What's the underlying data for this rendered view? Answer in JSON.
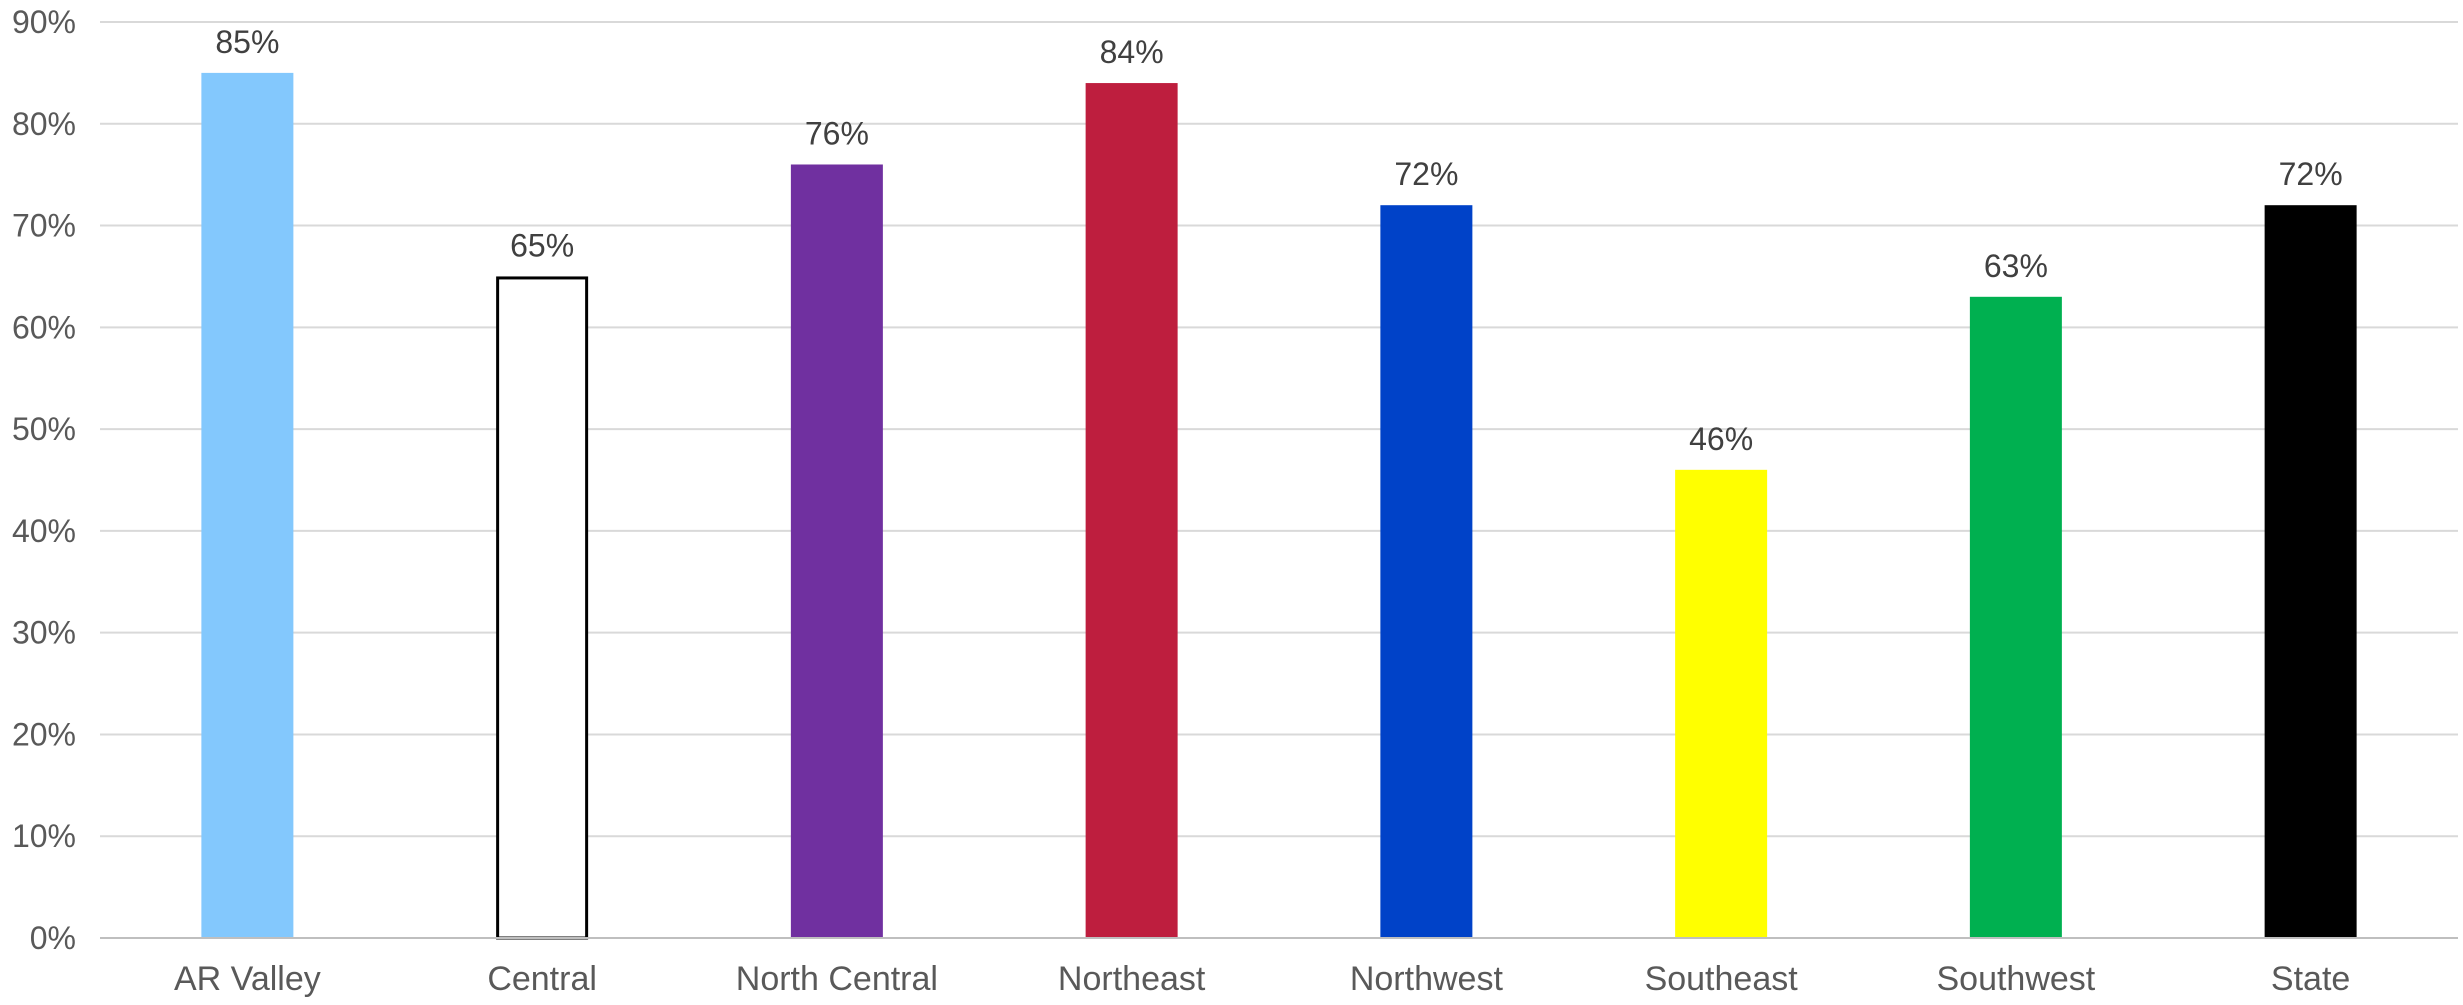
{
  "chart_data": {
    "type": "bar",
    "title": "",
    "xlabel": "",
    "ylabel": "",
    "categories": [
      "AR Valley",
      "Central",
      "North Central",
      "Northeast",
      "Northwest",
      "Southeast",
      "Southwest",
      "State"
    ],
    "values": [
      85,
      65,
      76,
      84,
      72,
      46,
      63,
      72
    ],
    "data_labels": [
      "85%",
      "65%",
      "76%",
      "84%",
      "72%",
      "46%",
      "63%",
      "72%"
    ],
    "colors": [
      "#83C8FD",
      "#FFFFFF",
      "#7030A0",
      "#BE1E3E",
      "#0042C8",
      "#FFFF00",
      "#00B050",
      "#000000"
    ],
    "outline_colors": [
      "none",
      "#000000",
      "none",
      "none",
      "none",
      "none",
      "none",
      "none"
    ],
    "ylim": [
      0,
      90
    ],
    "yticks": [
      0,
      10,
      20,
      30,
      40,
      50,
      60,
      70,
      80,
      90
    ],
    "ytick_labels": [
      "0%",
      "10%",
      "20%",
      "30%",
      "40%",
      "50%",
      "60%",
      "70%",
      "80%",
      "90%"
    ],
    "grid": true,
    "legend": "none"
  }
}
